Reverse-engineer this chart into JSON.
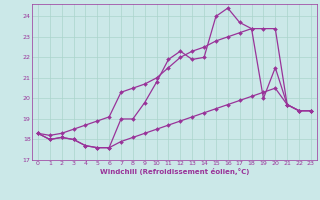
{
  "bg_color": "#cbe8e8",
  "grid_color": "#aad4cc",
  "line_color": "#993399",
  "marker": "D",
  "marker_size": 2.0,
  "linewidth": 0.9,
  "xlim": [
    -0.5,
    23.5
  ],
  "ylim": [
    17.0,
    24.6
  ],
  "yticks": [
    17,
    18,
    19,
    20,
    21,
    22,
    23,
    24
  ],
  "xticks": [
    0,
    1,
    2,
    3,
    4,
    5,
    6,
    7,
    8,
    9,
    10,
    11,
    12,
    13,
    14,
    15,
    16,
    17,
    18,
    19,
    20,
    21,
    22,
    23
  ],
  "xlabel": "Windchill (Refroidissement éolien,°C)",
  "series": [
    [
      18.3,
      18.0,
      18.1,
      18.0,
      17.7,
      17.6,
      17.6,
      19.0,
      19.0,
      19.8,
      20.8,
      21.9,
      22.3,
      21.9,
      22.0,
      24.0,
      24.4,
      23.7,
      23.4,
      20.0,
      21.5,
      19.7,
      19.4,
      19.4
    ],
    [
      18.3,
      18.2,
      18.3,
      18.5,
      18.7,
      18.9,
      19.1,
      20.3,
      20.5,
      20.7,
      21.0,
      21.5,
      22.0,
      22.3,
      22.5,
      22.8,
      23.0,
      23.2,
      23.4,
      23.4,
      23.4,
      19.7,
      19.4,
      19.4
    ],
    [
      18.3,
      18.0,
      18.1,
      18.0,
      17.7,
      17.6,
      17.6,
      17.9,
      18.1,
      18.3,
      18.5,
      18.7,
      18.9,
      19.1,
      19.3,
      19.5,
      19.7,
      19.9,
      20.1,
      20.3,
      20.5,
      19.7,
      19.4,
      19.4
    ]
  ]
}
